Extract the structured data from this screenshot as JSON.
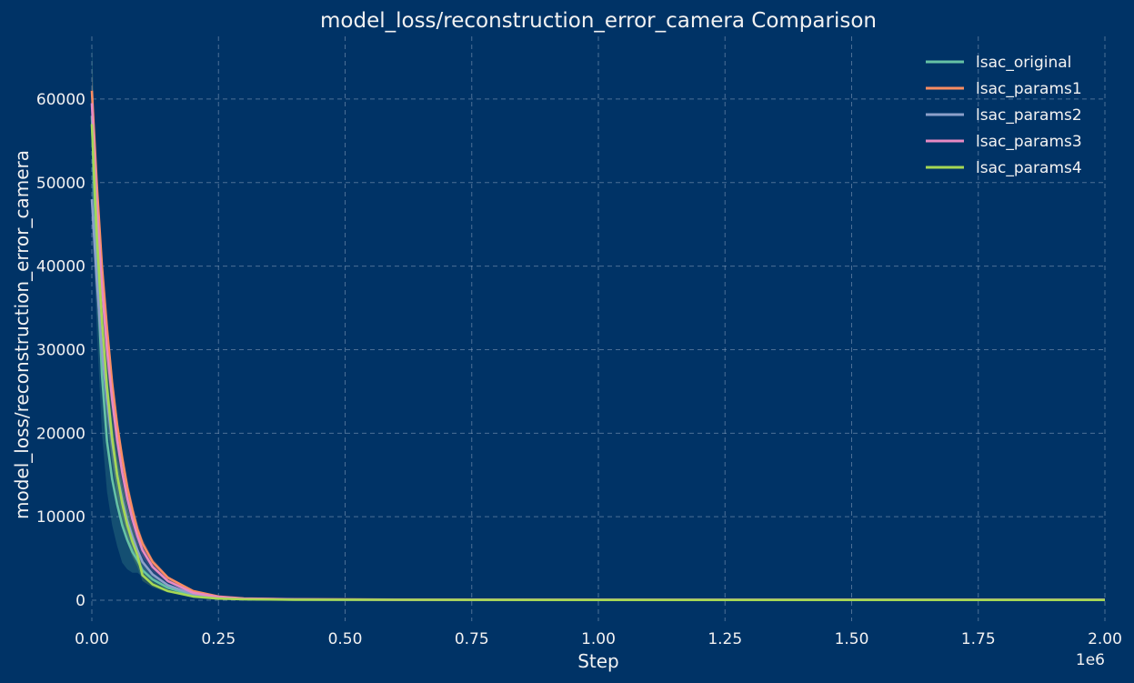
{
  "chart_data": {
    "type": "line",
    "title": "model_loss/reconstruction_error_camera Comparison",
    "xlabel": "Step",
    "ylabel": "model_loss/reconstruction_error_camera",
    "x_offset_label": "1e6",
    "xlim": [
      0,
      2000000
    ],
    "ylim": [
      -2500,
      67500
    ],
    "x_ticks": [
      0,
      250000,
      500000,
      750000,
      1000000,
      1250000,
      1500000,
      1750000,
      2000000
    ],
    "x_tick_labels": [
      "0.00",
      "0.25",
      "0.50",
      "0.75",
      "1.00",
      "1.25",
      "1.50",
      "1.75",
      "2.00"
    ],
    "y_ticks": [
      0,
      10000,
      20000,
      30000,
      40000,
      50000,
      60000
    ],
    "y_tick_labels": [
      "0",
      "10000",
      "20000",
      "30000",
      "40000",
      "50000",
      "60000"
    ],
    "grid": true,
    "legend_position": "top-right",
    "series": [
      {
        "name": "lsac_original",
        "color": "#66c2a5",
        "x": [
          0,
          10000,
          20000,
          30000,
          40000,
          50000,
          60000,
          70000,
          80000,
          90000,
          100000,
          120000,
          150000,
          200000,
          250000,
          300000,
          400000,
          600000,
          1000000,
          1500000,
          2000000
        ],
        "y": [
          58000,
          40000,
          27000,
          19000,
          14500,
          11500,
          9000,
          7200,
          5800,
          4800,
          3600,
          2500,
          1500,
          600,
          250,
          130,
          80,
          60,
          45,
          40,
          40
        ],
        "band": [
          9000,
          8000,
          7000,
          6000,
          5500,
          5000,
          4500,
          3500,
          2500,
          1500,
          800,
          400,
          200,
          100,
          50,
          20,
          10,
          5,
          5,
          5,
          5
        ]
      },
      {
        "name": "lsac_params1",
        "color": "#fc8d62",
        "x": [
          0,
          10000,
          20000,
          30000,
          40000,
          50000,
          60000,
          70000,
          80000,
          90000,
          100000,
          120000,
          150000,
          200000,
          250000,
          300000,
          400000,
          600000,
          1000000,
          1500000,
          2000000
        ],
        "y": [
          61000,
          49500,
          40000,
          32500,
          26000,
          21000,
          17000,
          13500,
          10800,
          8500,
          6800,
          4600,
          2700,
          1100,
          450,
          220,
          120,
          80,
          60,
          55,
          55
        ],
        "band": [
          2500,
          2000,
          1800,
          1500,
          1300,
          1200,
          1100,
          1000,
          900,
          800,
          600,
          400,
          200,
          100,
          50,
          20,
          10,
          5,
          5,
          5,
          5
        ]
      },
      {
        "name": "lsac_params2",
        "color": "#8da0cb",
        "x": [
          0,
          10000,
          20000,
          30000,
          40000,
          50000,
          60000,
          70000,
          80000,
          90000,
          100000,
          120000,
          150000,
          200000,
          250000,
          300000,
          400000,
          600000,
          1000000,
          1500000,
          2000000
        ],
        "y": [
          48000,
          38000,
          30000,
          24000,
          19000,
          15000,
          12000,
          9500,
          7600,
          6000,
          4600,
          3100,
          1800,
          700,
          300,
          150,
          90,
          65,
          50,
          45,
          45
        ],
        "band": [
          4000,
          3500,
          3000,
          2800,
          2500,
          2200,
          2000,
          1800,
          1500,
          1200,
          900,
          500,
          250,
          100,
          50,
          20,
          10,
          5,
          5,
          5,
          5
        ]
      },
      {
        "name": "lsac_params3",
        "color": "#e78ac3",
        "x": [
          0,
          10000,
          20000,
          30000,
          40000,
          50000,
          60000,
          70000,
          80000,
          90000,
          100000,
          120000,
          150000,
          200000,
          250000,
          300000,
          400000,
          600000,
          1000000,
          1500000,
          2000000
        ],
        "y": [
          59500,
          47000,
          37500,
          30000,
          24000,
          19200,
          15300,
          12200,
          9700,
          7700,
          6000,
          4000,
          2300,
          900,
          380,
          190,
          100,
          70,
          55,
          50,
          50
        ],
        "band": [
          3000,
          2500,
          2200,
          2000,
          1800,
          1600,
          1400,
          1200,
          1000,
          900,
          700,
          450,
          220,
          100,
          50,
          20,
          10,
          5,
          5,
          5,
          5
        ]
      },
      {
        "name": "lsac_params4",
        "color": "#a6d854",
        "x": [
          0,
          10000,
          20000,
          30000,
          40000,
          50000,
          60000,
          70000,
          80000,
          90000,
          100000,
          120000,
          150000,
          200000,
          250000,
          300000,
          400000,
          600000,
          1000000,
          1500000,
          2000000
        ],
        "y": [
          57000,
          43500,
          33500,
          25500,
          19500,
          15000,
          11600,
          9000,
          7000,
          5400,
          3000,
          1900,
          1100,
          450,
          200,
          110,
          70,
          55,
          40,
          35,
          35
        ],
        "band": [
          5000,
          4500,
          4000,
          3500,
          3000,
          2800,
          2500,
          2200,
          1800,
          1400,
          700,
          350,
          180,
          80,
          40,
          15,
          10,
          5,
          5,
          5,
          5
        ]
      }
    ]
  }
}
